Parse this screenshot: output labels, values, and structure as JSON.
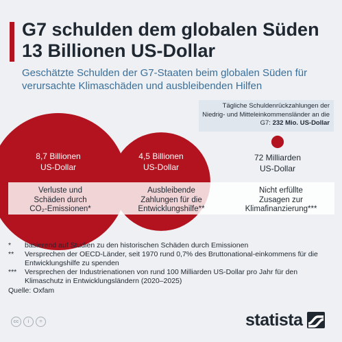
{
  "title": "G7 schulden dem globalen Süden 13 Billionen US-Dollar",
  "subtitle": "Geschätzte Schulden der G7-Staaten beim globalen Süden für verursachte Klimaschäden und ausbleibenden Hilfen",
  "callout": {
    "text": "Tägliche Schuldenrückzahlungen der Niedrig- und Mitteleinkommensländer an die G7:",
    "value": "232 Mio. US-Dollar"
  },
  "colors": {
    "accent": "#b3121f",
    "circle": "#b3121f",
    "subtitle": "#3a6f9a"
  },
  "chart_data": {
    "type": "bubble",
    "unit": "US-Dollar",
    "items": [
      {
        "value": 8.7,
        "unit": "Billionen",
        "value_label": "8,7 Billionen US-Dollar",
        "value_lines": [
          "8,7 Billionen",
          "US-Dollar"
        ],
        "description": "Verluste und Schäden durch CO₂-Emissionen*",
        "description_lines": [
          "Verluste und",
          "Schäden durch",
          "CO₂-Emissionen*"
        ]
      },
      {
        "value": 4.5,
        "unit": "Billionen",
        "value_label": "4,5 Billionen US-Dollar",
        "value_lines": [
          "4,5 Billionen",
          "US-Dollar"
        ],
        "description": "Ausbleibende Zahlungen für die Entwicklungshilfe**",
        "description_lines": [
          "Ausbleibende",
          "Zahlungen für die",
          "Entwicklungshilfe**"
        ]
      },
      {
        "value": 0.072,
        "unit": "Billionen",
        "value_label": "72 Milliarden US-Dollar",
        "value_lines": [
          "72 Milliarden",
          "US-Dollar"
        ],
        "description": "Nicht erfüllte Zusagen zur Klimafinanzierung***",
        "description_lines": [
          "Nicht erfüllte",
          "Zusagen zur",
          "Klimafinanzierung***"
        ]
      }
    ]
  },
  "notes": [
    {
      "mark": "*",
      "text": "basierend auf Studien zu den historischen Schäden durch Emissionen"
    },
    {
      "mark": "**",
      "text": "Versprechen der OECD-Länder, seit 1970 rund 0,7% des Bruttonational-einkommens für die Entwicklungshilfe zu spenden"
    },
    {
      "mark": "***",
      "text": "Versprechen der Industrienationen von rund 100 Milliarden US-Dollar pro Jahr für den Klimaschutz in Entwicklungsländern (2020–2025)"
    }
  ],
  "source": "Quelle: Oxfam",
  "footer": {
    "brand": "statista",
    "license_icons": [
      "cc-icon",
      "by-icon",
      "nd-icon"
    ],
    "license_glyphs": [
      "cc",
      "i",
      "="
    ]
  }
}
